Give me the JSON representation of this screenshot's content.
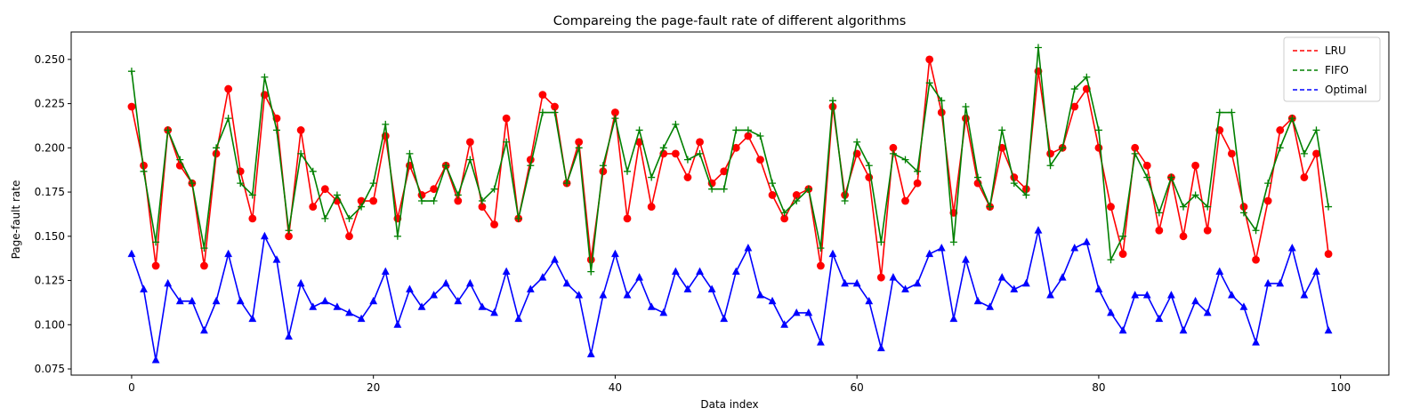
{
  "chart_data": {
    "type": "line",
    "title": "Compareing the page-fault rate of different algorithms",
    "xlabel": "Data index",
    "ylabel": "Page-fault rate",
    "xlim": [
      -5,
      104
    ],
    "ylim": [
      0.0715,
      0.2655
    ],
    "xticks": [
      0,
      20,
      40,
      60,
      80,
      100
    ],
    "yticks": [
      0.075,
      0.1,
      0.125,
      0.15,
      0.175,
      0.2,
      0.225,
      0.25
    ],
    "ytick_labels": [
      "0.075",
      "0.100",
      "0.125",
      "0.150",
      "0.175",
      "0.200",
      "0.225",
      "0.250"
    ],
    "grid": false,
    "legend_position": "upper right",
    "series": [
      {
        "name": "LRU",
        "color": "#ff0000",
        "marker": "circle",
        "values": [
          0.2233,
          0.19,
          0.1333,
          0.21,
          0.19,
          0.18,
          0.1333,
          0.1967,
          0.2333,
          0.1867,
          0.16,
          0.23,
          0.2167,
          0.15,
          0.21,
          0.1667,
          0.1767,
          0.17,
          0.15,
          0.17,
          0.17,
          0.2067,
          0.16,
          0.19,
          0.1733,
          0.1767,
          0.19,
          0.17,
          0.2033,
          0.1667,
          0.1567,
          0.2167,
          0.16,
          0.1933,
          0.23,
          0.2233,
          0.18,
          0.2033,
          0.1367,
          0.1867,
          0.22,
          0.16,
          0.2033,
          0.1667,
          0.1967,
          0.1967,
          0.1833,
          0.2033,
          0.18,
          0.1867,
          0.2,
          0.2067,
          0.1933,
          0.1733,
          0.16,
          0.1733,
          0.1767,
          0.1333,
          0.2233,
          0.1733,
          0.1967,
          0.1833,
          0.1267,
          0.2,
          0.17,
          0.18,
          0.25,
          0.22,
          0.1633,
          0.2167,
          0.18,
          0.1667,
          0.2,
          0.1833,
          0.1767,
          0.2433,
          0.1967,
          0.2,
          0.2233,
          0.2333,
          0.2,
          0.1667,
          0.14,
          0.2,
          0.19,
          0.1533,
          0.1833,
          0.15,
          0.19,
          0.1533,
          0.21,
          0.1967,
          0.1667,
          0.1367,
          0.17,
          0.21,
          0.2167,
          0.1833,
          0.1967,
          0.14
        ]
      },
      {
        "name": "FIFO",
        "color": "#008000",
        "marker": "plus",
        "values": [
          0.2433,
          0.1867,
          0.1467,
          0.21,
          0.1933,
          0.18,
          0.1433,
          0.2,
          0.2167,
          0.18,
          0.1733,
          0.24,
          0.21,
          0.1533,
          0.1967,
          0.1867,
          0.16,
          0.1733,
          0.16,
          0.1667,
          0.18,
          0.2133,
          0.15,
          0.1967,
          0.17,
          0.17,
          0.19,
          0.1733,
          0.1933,
          0.17,
          0.1767,
          0.2033,
          0.16,
          0.19,
          0.22,
          0.22,
          0.18,
          0.2,
          0.13,
          0.19,
          0.2167,
          0.1867,
          0.21,
          0.1833,
          0.2,
          0.2133,
          0.1933,
          0.1967,
          0.1767,
          0.1767,
          0.21,
          0.21,
          0.2067,
          0.18,
          0.1633,
          0.17,
          0.1767,
          0.1433,
          0.2267,
          0.17,
          0.2033,
          0.19,
          0.1467,
          0.1967,
          0.1933,
          0.1867,
          0.2367,
          0.2267,
          0.1467,
          0.2233,
          0.1833,
          0.1667,
          0.21,
          0.18,
          0.1733,
          0.2567,
          0.19,
          0.2,
          0.2333,
          0.24,
          0.21,
          0.1367,
          0.15,
          0.1967,
          0.1833,
          0.1633,
          0.1833,
          0.1667,
          0.1733,
          0.1667,
          0.22,
          0.22,
          0.1633,
          0.1533,
          0.18,
          0.2,
          0.2167,
          0.1967,
          0.21,
          0.1667
        ]
      },
      {
        "name": "Optimal",
        "color": "#0000ff",
        "marker": "triangle",
        "values": [
          0.14,
          0.12,
          0.08,
          0.1233,
          0.1133,
          0.1133,
          0.0967,
          0.1133,
          0.14,
          0.1133,
          0.1033,
          0.15,
          0.1367,
          0.0933,
          0.1233,
          0.11,
          0.1133,
          0.11,
          0.1067,
          0.1033,
          0.1133,
          0.13,
          0.1,
          0.12,
          0.11,
          0.1167,
          0.1233,
          0.1133,
          0.1233,
          0.11,
          0.1067,
          0.13,
          0.1033,
          0.12,
          0.1267,
          0.1367,
          0.1233,
          0.1167,
          0.0833,
          0.1167,
          0.14,
          0.1167,
          0.1267,
          0.11,
          0.1067,
          0.13,
          0.12,
          0.13,
          0.12,
          0.1033,
          0.13,
          0.1433,
          0.1167,
          0.1133,
          0.1,
          0.1067,
          0.1067,
          0.09,
          0.14,
          0.1233,
          0.1233,
          0.1133,
          0.0867,
          0.1267,
          0.12,
          0.1233,
          0.14,
          0.1433,
          0.1033,
          0.1367,
          0.1133,
          0.11,
          0.1267,
          0.12,
          0.1233,
          0.1533,
          0.1167,
          0.1267,
          0.1433,
          0.1467,
          0.12,
          0.1067,
          0.0967,
          0.1167,
          0.1167,
          0.1033,
          0.1167,
          0.0967,
          0.1133,
          0.1067,
          0.13,
          0.1167,
          0.11,
          0.09,
          0.1233,
          0.1233,
          0.1433,
          0.1167,
          0.13,
          0.0967
        ]
      }
    ]
  }
}
